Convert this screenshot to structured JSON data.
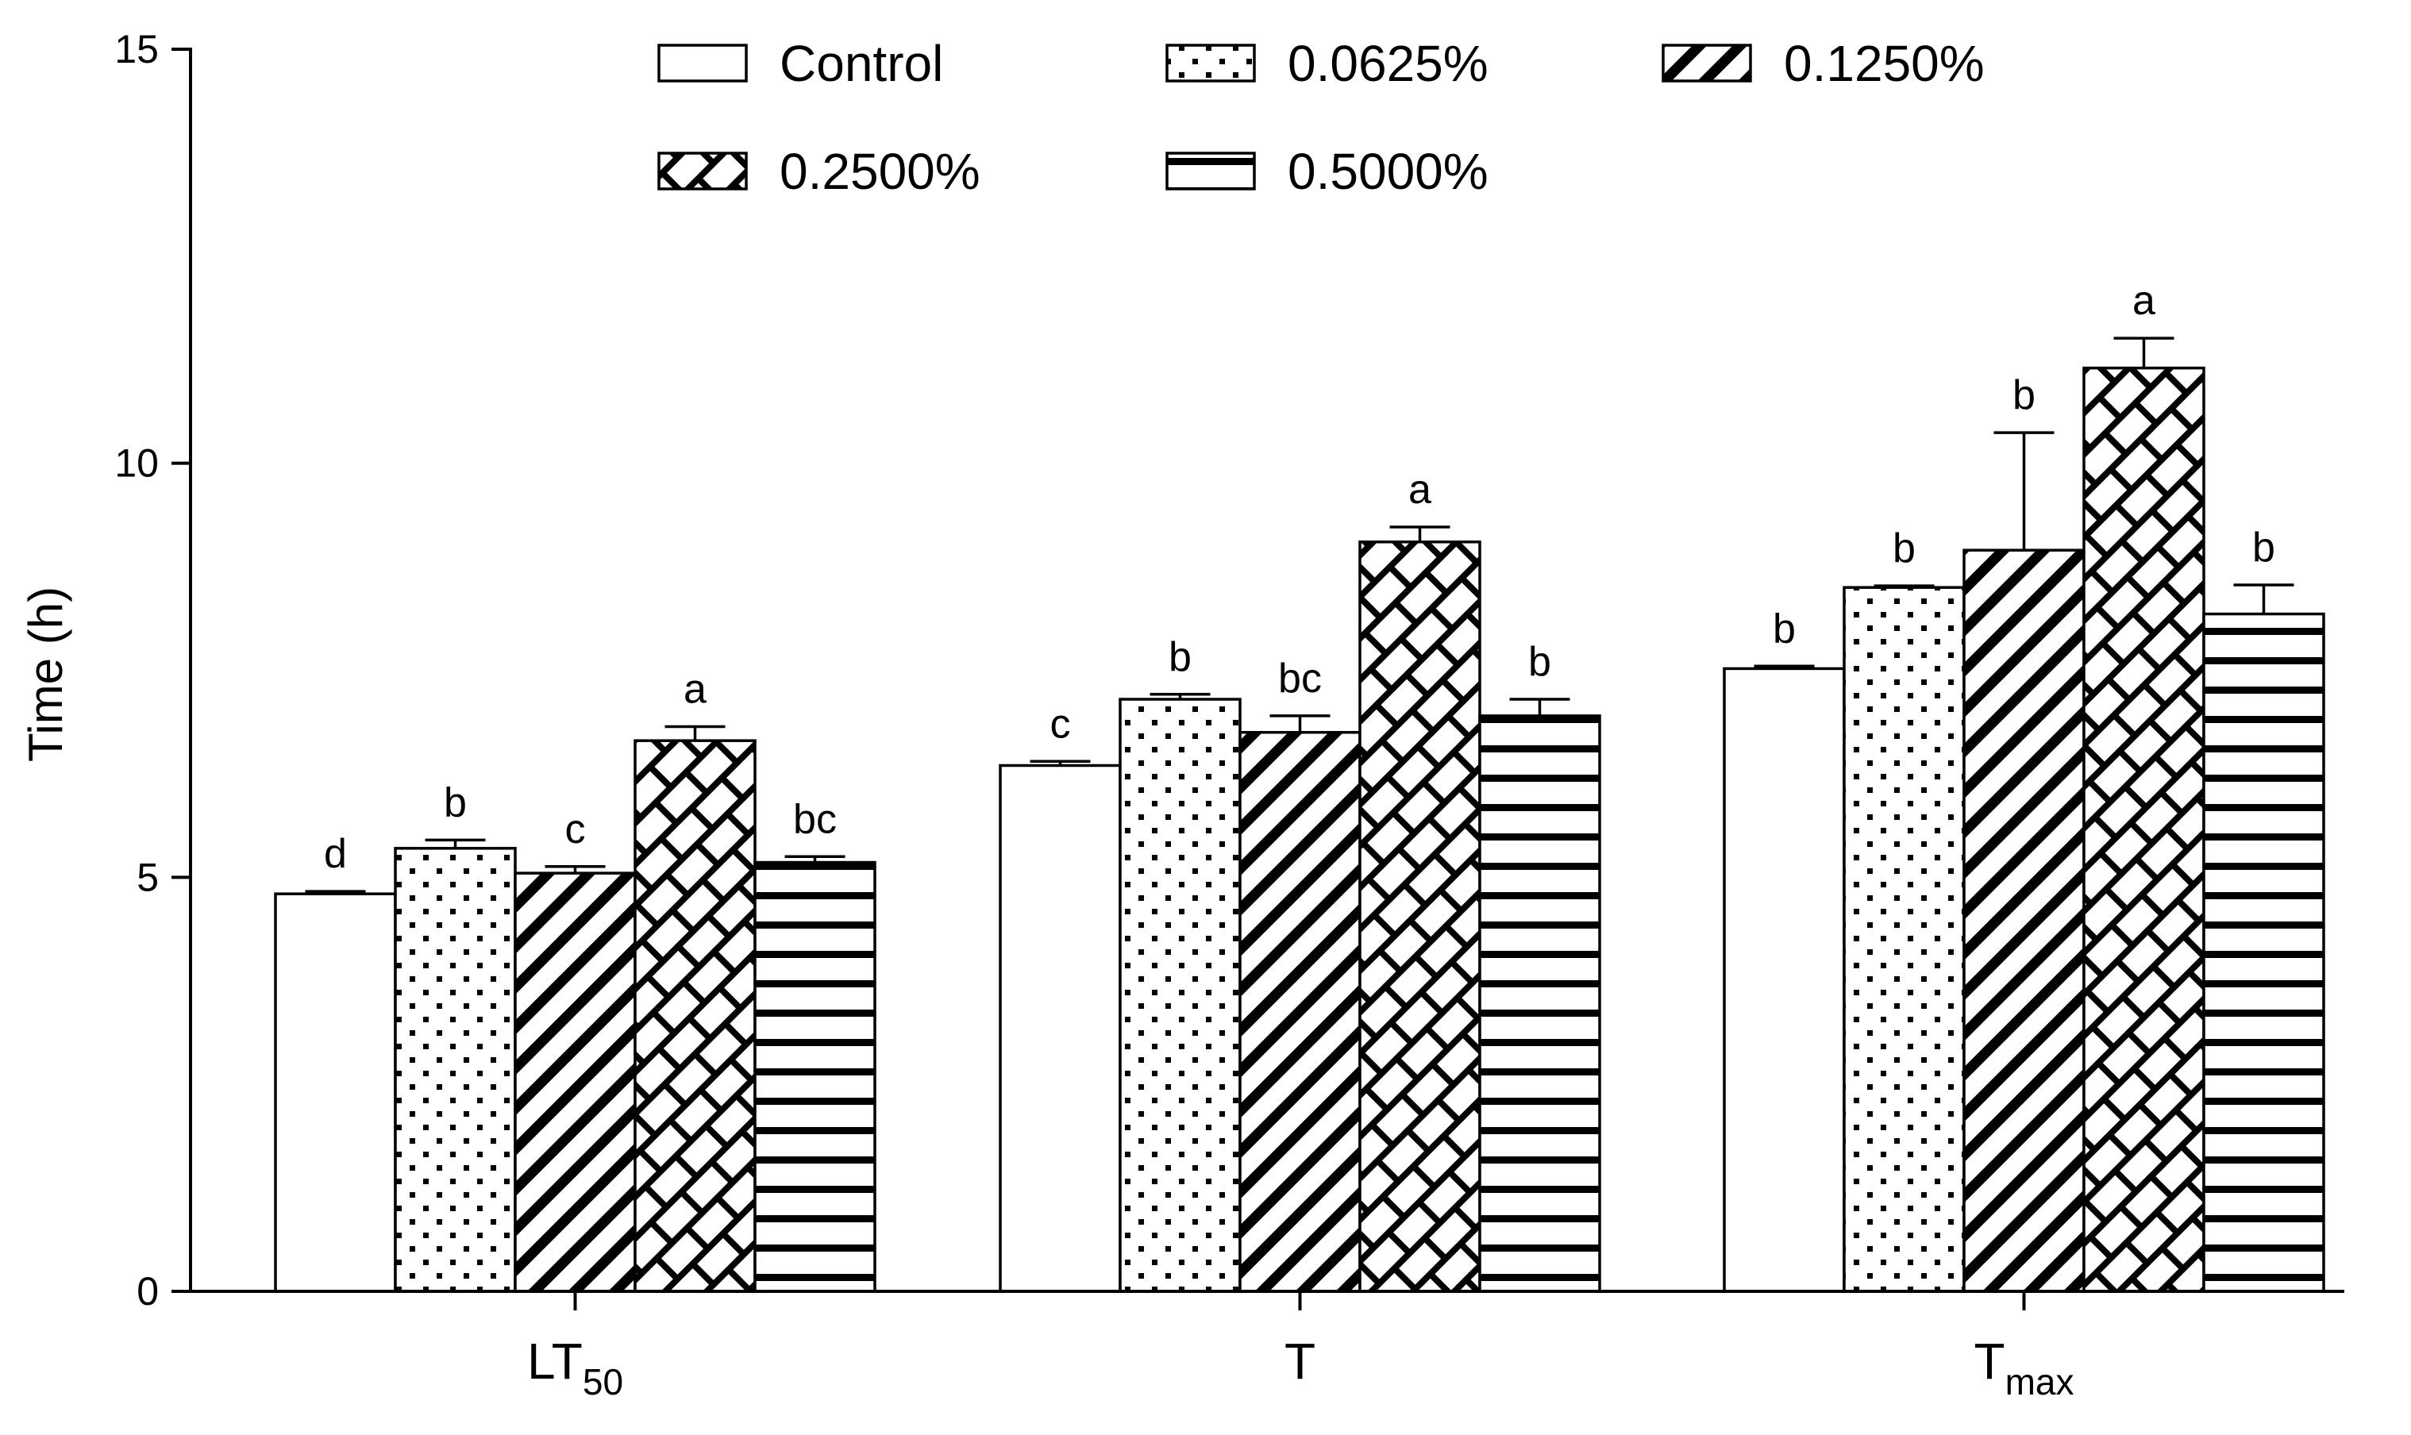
{
  "chart_data": {
    "type": "bar",
    "ylabel": "Time (h)",
    "xlabel": "",
    "ylim": [
      0,
      15
    ],
    "yticks": [
      0,
      5,
      10,
      15
    ],
    "categories": [
      {
        "main": "LT",
        "sub": "50"
      },
      {
        "main": "T",
        "sub": ""
      },
      {
        "main": "T",
        "sub": "max"
      }
    ],
    "legend_position": "top",
    "series": [
      {
        "name": "Control",
        "pattern": "none",
        "values": [
          4.8,
          6.35,
          7.52
        ],
        "errors": [
          0.03,
          0.05,
          0.03
        ],
        "letters": [
          "d",
          "c",
          "b"
        ]
      },
      {
        "name": "0.0625%",
        "pattern": "dots",
        "values": [
          5.35,
          7.15,
          8.5
        ],
        "errors": [
          0.1,
          0.06,
          0.02
        ],
        "letters": [
          "b",
          "b",
          "b"
        ]
      },
      {
        "name": "0.1250%",
        "pattern": "diagonal",
        "values": [
          5.05,
          6.75,
          8.95
        ],
        "errors": [
          0.08,
          0.2,
          1.42
        ],
        "letters": [
          "c",
          "bc",
          "b"
        ]
      },
      {
        "name": "0.2500%",
        "pattern": "brick",
        "values": [
          6.65,
          9.05,
          11.15
        ],
        "errors": [
          0.17,
          0.18,
          0.36
        ],
        "letters": [
          "a",
          "a",
          "a"
        ]
      },
      {
        "name": "0.5000%",
        "pattern": "horizontal",
        "values": [
          5.18,
          6.95,
          8.18
        ],
        "errors": [
          0.07,
          0.2,
          0.35
        ],
        "letters": [
          "bc",
          "b",
          "b"
        ]
      }
    ]
  }
}
